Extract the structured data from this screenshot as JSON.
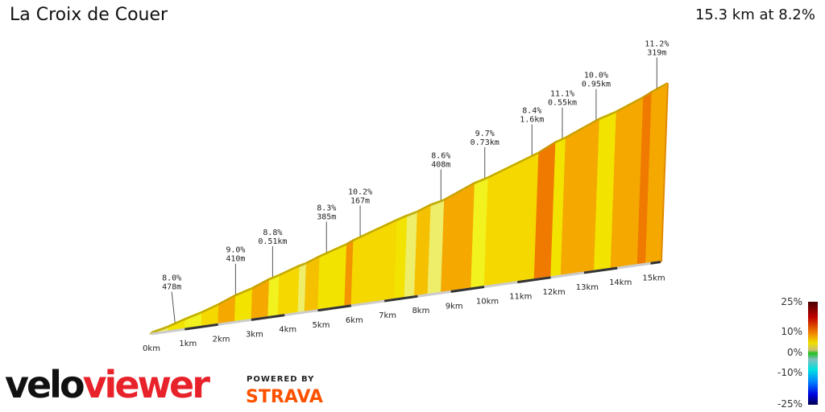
{
  "header": {
    "title": "La Croix de Couer",
    "summary": "15.3 km at 8.2%"
  },
  "chart_data": {
    "type": "area",
    "title": "La Croix de Couer",
    "total_distance_km": 15.3,
    "average_gradient_pct": 8.2,
    "segments": [
      {
        "from_km": 0,
        "to_km": 0.5,
        "gradient": 5
      },
      {
        "from_km": 0.5,
        "to_km": 1,
        "gradient": 7
      },
      {
        "from_km": 1,
        "to_km": 1.5,
        "gradient": 6
      },
      {
        "from_km": 1.5,
        "to_km": 2,
        "gradient": 7.5
      },
      {
        "from_km": 2,
        "to_km": 2.5,
        "gradient": 9
      },
      {
        "from_km": 2.5,
        "to_km": 3,
        "gradient": 6.5
      },
      {
        "from_km": 3,
        "to_km": 3.5,
        "gradient": 9
      },
      {
        "from_km": 3.5,
        "to_km": 3.8,
        "gradient": 6
      },
      {
        "from_km": 3.8,
        "to_km": 4.4,
        "gradient": 7.5
      },
      {
        "from_km": 4.4,
        "to_km": 4.6,
        "gradient": 5
      },
      {
        "from_km": 4.6,
        "to_km": 5,
        "gradient": 8.5
      },
      {
        "from_km": 5,
        "to_km": 5.8,
        "gradient": 7
      },
      {
        "from_km": 5.8,
        "to_km": 6,
        "gradient": 10.2
      },
      {
        "from_km": 6,
        "to_km": 7.3,
        "gradient": 7.5
      },
      {
        "from_km": 7.3,
        "to_km": 7.6,
        "gradient": 6.5
      },
      {
        "from_km": 7.6,
        "to_km": 7.9,
        "gradient": 5.5
      },
      {
        "from_km": 7.9,
        "to_km": 8.3,
        "gradient": 8.5
      },
      {
        "from_km": 8.3,
        "to_km": 8.7,
        "gradient": 5
      },
      {
        "from_km": 8.7,
        "to_km": 9.6,
        "gradient": 9.5
      },
      {
        "from_km": 9.6,
        "to_km": 10,
        "gradient": 6
      },
      {
        "from_km": 10,
        "to_km": 11.5,
        "gradient": 8
      },
      {
        "from_km": 11.5,
        "to_km": 12,
        "gradient": 11.1
      },
      {
        "from_km": 12,
        "to_km": 12.3,
        "gradient": 7
      },
      {
        "from_km": 12.3,
        "to_km": 13.3,
        "gradient": 9.5
      },
      {
        "from_km": 13.3,
        "to_km": 13.8,
        "gradient": 6.5
      },
      {
        "from_km": 13.8,
        "to_km": 14.6,
        "gradient": 9
      },
      {
        "from_km": 14.6,
        "to_km": 14.85,
        "gradient": 11.2
      },
      {
        "from_km": 14.85,
        "to_km": 15.3,
        "gradient": 9.5
      }
    ],
    "annotations": [
      {
        "at_km": 0.7,
        "grade": "8.0%",
        "length": "478m"
      },
      {
        "at_km": 2.5,
        "grade": "9.0%",
        "length": "410m"
      },
      {
        "at_km": 3.6,
        "grade": "8.8%",
        "length": "0.51km"
      },
      {
        "at_km": 5.2,
        "grade": "8.3%",
        "length": "385m"
      },
      {
        "at_km": 6.2,
        "grade": "10.2%",
        "length": "167m"
      },
      {
        "at_km": 8.6,
        "grade": "8.6%",
        "length": "408m"
      },
      {
        "at_km": 9.9,
        "grade": "9.7%",
        "length": "0.73km"
      },
      {
        "at_km": 11.3,
        "grade": "8.4%",
        "length": "1.6km"
      },
      {
        "at_km": 12.2,
        "grade": "11.1%",
        "length": "0.55km"
      },
      {
        "at_km": 13.2,
        "grade": "10.0%",
        "length": "0.95km"
      },
      {
        "at_km": 15.0,
        "grade": "11.2%",
        "length": "319m"
      }
    ],
    "x_ticks": [
      "0km",
      "1km",
      "2km",
      "3km",
      "4km",
      "5km",
      "6km",
      "7km",
      "8km",
      "9km",
      "10km",
      "11km",
      "12km",
      "13km",
      "14km",
      "15km"
    ],
    "legend": {
      "labels": [
        "25%",
        "10%",
        "0%",
        "-10%",
        "-25%"
      ]
    }
  },
  "branding": {
    "logo_part1": "velo",
    "logo_part2": "viewer",
    "powered_by": "POWERED BY",
    "strava": "STRAVA"
  }
}
